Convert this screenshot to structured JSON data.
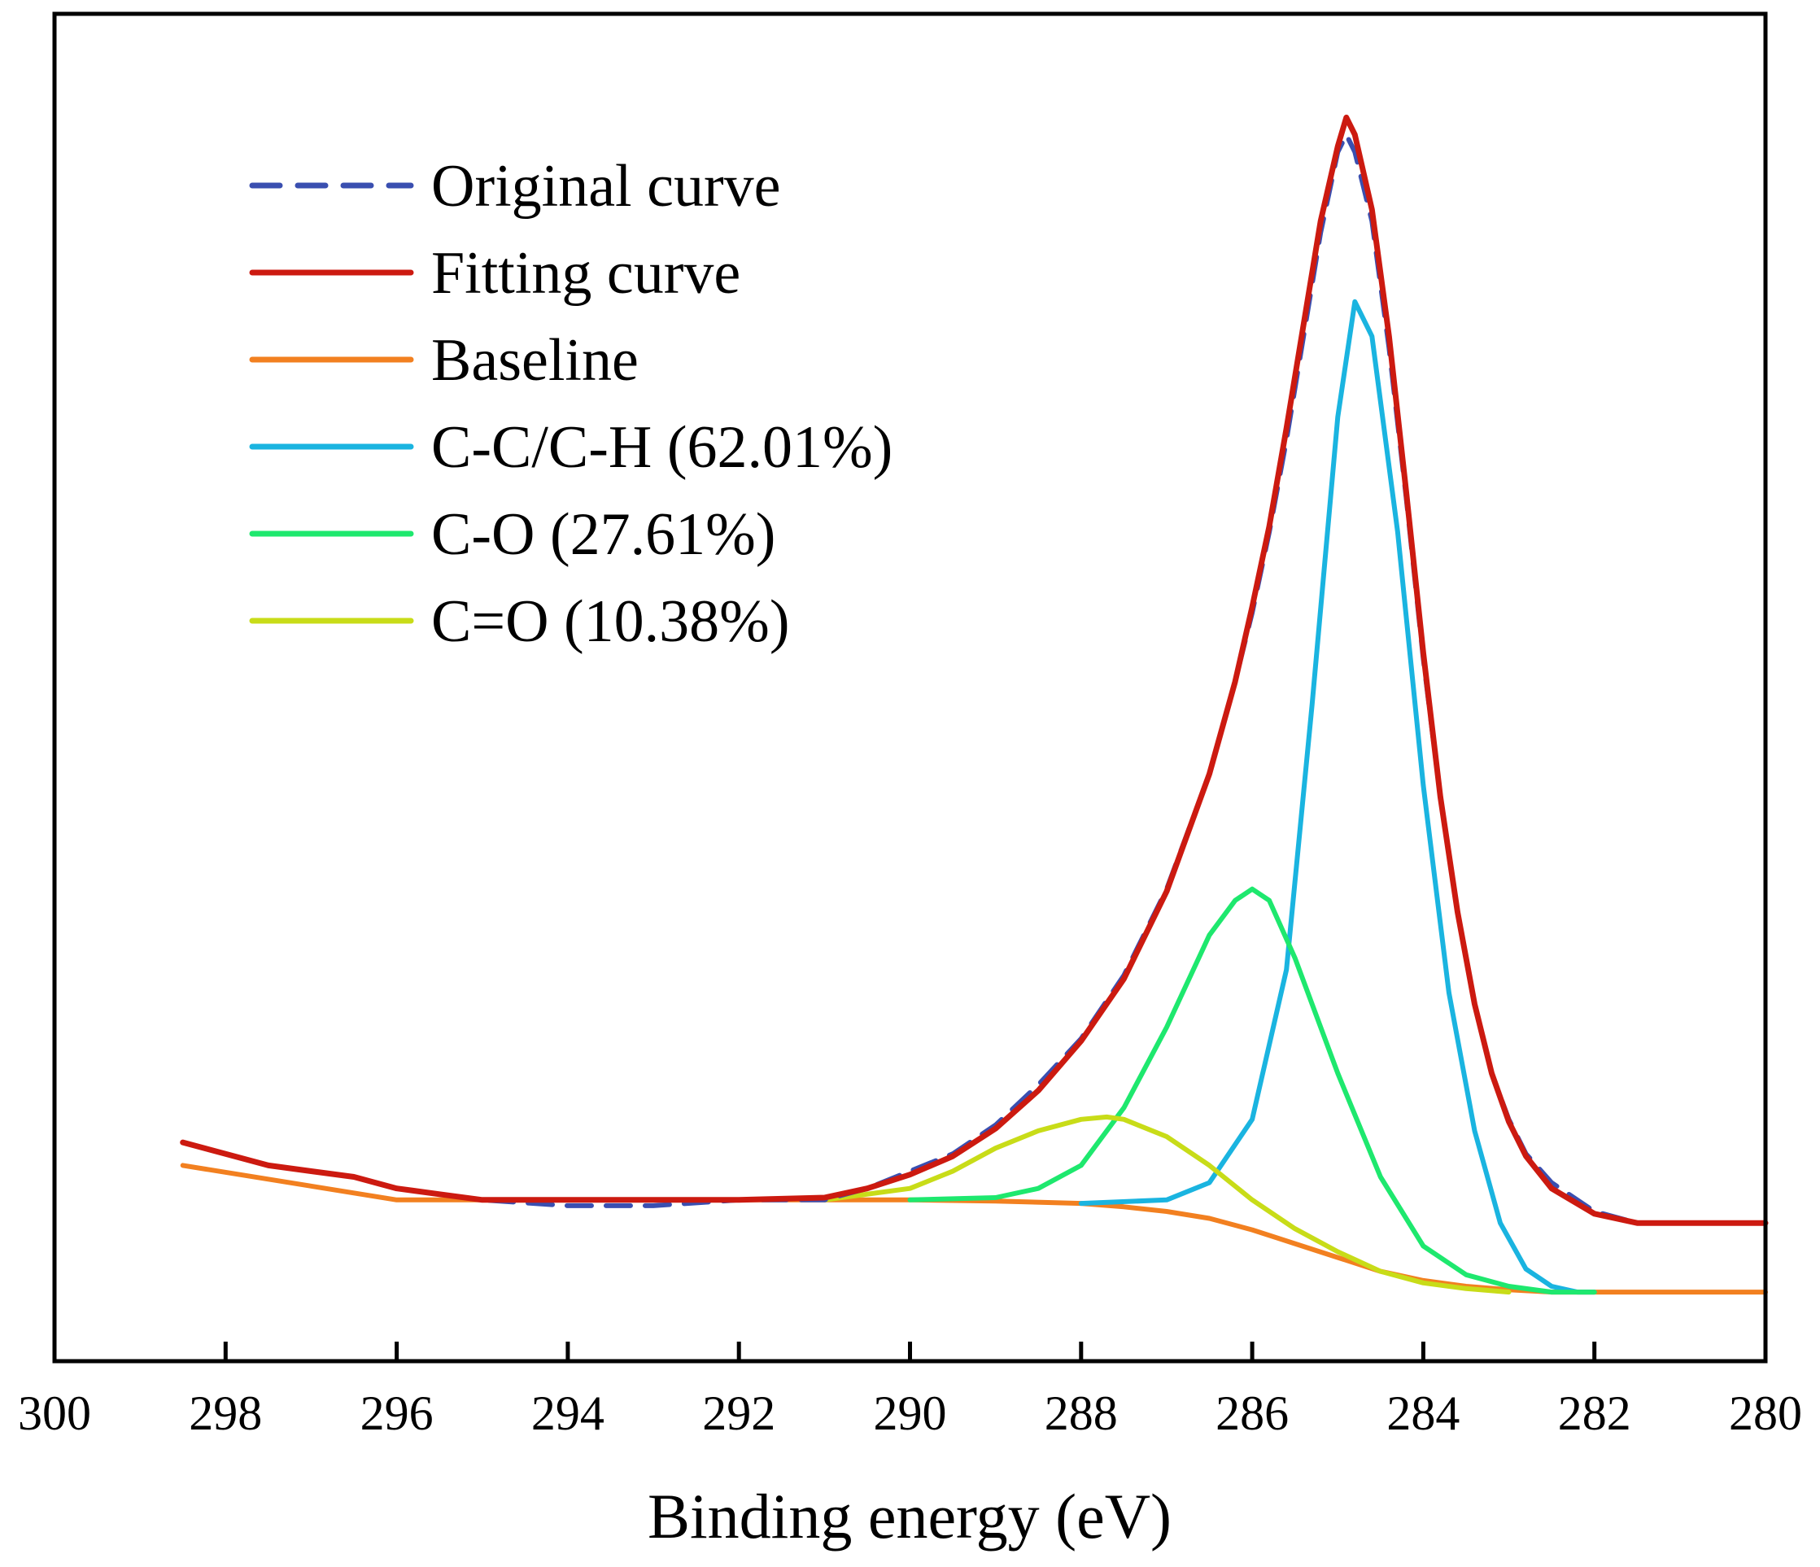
{
  "chart_data": {
    "type": "line",
    "title": "",
    "xlabel": "Binding energy (eV)",
    "ylabel": "",
    "xlim": [
      300,
      280
    ],
    "x_reversed": true,
    "ylim": [
      -0.12,
      1.05
    ],
    "y_ticks_labeled": false,
    "x_ticks": [
      "300",
      "298",
      "296",
      "294",
      "292",
      "290",
      "288",
      "286",
      "284",
      "282",
      "280"
    ],
    "legend_position": "top-left",
    "series": [
      {
        "name": "Original curve",
        "color": "#3a4fb0",
        "style": "dashed",
        "x": [
          298.5,
          298.0,
          297.5,
          297.0,
          296.5,
          296.0,
          295.5,
          295.0,
          294.0,
          293.0,
          292.0,
          291.0,
          290.5,
          290.0,
          289.5,
          289.0,
          288.5,
          288.0,
          287.5,
          287.0,
          286.5,
          286.2,
          286.0,
          285.8,
          285.6,
          285.4,
          285.2,
          285.0,
          284.9,
          284.8,
          284.6,
          284.4,
          284.2,
          284.0,
          283.8,
          283.6,
          283.4,
          283.2,
          283.0,
          282.8,
          282.5,
          282.0,
          281.5,
          281.0,
          280.5,
          280.0
        ],
        "y": [
          0.07,
          0.06,
          0.05,
          0.045,
          0.04,
          0.03,
          0.025,
          0.02,
          0.015,
          0.015,
          0.02,
          0.02,
          0.03,
          0.045,
          0.06,
          0.085,
          0.12,
          0.16,
          0.215,
          0.29,
          0.39,
          0.47,
          0.53,
          0.6,
          0.68,
          0.77,
          0.86,
          0.93,
          0.945,
          0.93,
          0.87,
          0.76,
          0.63,
          0.49,
          0.37,
          0.27,
          0.19,
          0.13,
          0.09,
          0.06,
          0.035,
          0.01,
          0.0,
          0.0,
          0.0,
          0.0
        ]
      },
      {
        "name": "Fitting curve",
        "color": "#cc1a10",
        "style": "solid",
        "x": [
          298.5,
          298.0,
          297.5,
          297.0,
          296.5,
          296.0,
          295.5,
          295.0,
          294.0,
          293.0,
          292.0,
          291.0,
          290.5,
          290.0,
          289.5,
          289.0,
          288.5,
          288.0,
          287.5,
          287.0,
          286.5,
          286.2,
          286.0,
          285.8,
          285.6,
          285.4,
          285.2,
          285.0,
          284.9,
          284.8,
          284.6,
          284.4,
          284.2,
          284.0,
          283.8,
          283.6,
          283.4,
          283.2,
          283.0,
          282.8,
          282.5,
          282.0,
          281.5,
          281.0,
          280.5,
          280.0
        ],
        "y": [
          0.07,
          0.06,
          0.05,
          0.045,
          0.04,
          0.03,
          0.025,
          0.02,
          0.02,
          0.02,
          0.02,
          0.022,
          0.03,
          0.042,
          0.058,
          0.082,
          0.115,
          0.158,
          0.212,
          0.288,
          0.39,
          0.47,
          0.535,
          0.605,
          0.69,
          0.78,
          0.87,
          0.935,
          0.96,
          0.945,
          0.88,
          0.77,
          0.635,
          0.495,
          0.37,
          0.27,
          0.19,
          0.13,
          0.088,
          0.058,
          0.03,
          0.008,
          0.0,
          0.0,
          0.0,
          0.0
        ]
      },
      {
        "name": "Baseline",
        "color": "#f28020",
        "style": "solid",
        "x": [
          298.5,
          296.0,
          294.0,
          292.0,
          290.0,
          289.0,
          288.0,
          287.5,
          287.0,
          286.5,
          286.0,
          285.5,
          285.0,
          284.5,
          284.0,
          283.5,
          283.0,
          282.5,
          282.0,
          281.0,
          280.0
        ],
        "y": [
          0.05,
          0.02,
          0.02,
          0.02,
          0.02,
          0.019,
          0.017,
          0.014,
          0.01,
          0.004,
          -0.006,
          -0.018,
          -0.03,
          -0.042,
          -0.05,
          -0.055,
          -0.058,
          -0.06,
          -0.06,
          -0.06,
          -0.06
        ]
      },
      {
        "name": "C-C/C-H (62.01%)",
        "color": "#1ab4e0",
        "style": "solid",
        "x": [
          288.0,
          287.0,
          286.5,
          286.0,
          285.6,
          285.3,
          285.0,
          284.8,
          284.6,
          284.3,
          284.0,
          283.7,
          283.4,
          283.1,
          282.8,
          282.5,
          282.2,
          282.0
        ],
        "y": [
          0.017,
          0.02,
          0.035,
          0.09,
          0.22,
          0.45,
          0.7,
          0.8,
          0.77,
          0.6,
          0.38,
          0.2,
          0.08,
          0.0,
          -0.04,
          -0.055,
          -0.06,
          -0.06
        ]
      },
      {
        "name": "C-O (27.61%)",
        "color": "#1ee86e",
        "style": "solid",
        "x": [
          290.0,
          289.0,
          288.5,
          288.0,
          287.5,
          287.0,
          286.5,
          286.2,
          286.0,
          285.8,
          285.5,
          285.0,
          284.5,
          284.0,
          283.5,
          283.0,
          282.5,
          282.0
        ],
        "y": [
          0.02,
          0.022,
          0.03,
          0.05,
          0.1,
          0.17,
          0.25,
          0.28,
          0.29,
          0.28,
          0.23,
          0.13,
          0.04,
          -0.02,
          -0.045,
          -0.055,
          -0.06,
          -0.06
        ]
      },
      {
        "name": "C=O (10.38%)",
        "color": "#c8dc18",
        "style": "solid",
        "x": [
          291.0,
          290.0,
          289.5,
          289.0,
          288.5,
          288.0,
          287.7,
          287.5,
          287.0,
          286.5,
          286.0,
          285.5,
          285.0,
          284.5,
          284.0,
          283.5,
          283.0
        ],
        "y": [
          0.02,
          0.03,
          0.045,
          0.065,
          0.08,
          0.09,
          0.092,
          0.09,
          0.075,
          0.05,
          0.02,
          -0.005,
          -0.025,
          -0.042,
          -0.052,
          -0.057,
          -0.06
        ]
      }
    ]
  }
}
